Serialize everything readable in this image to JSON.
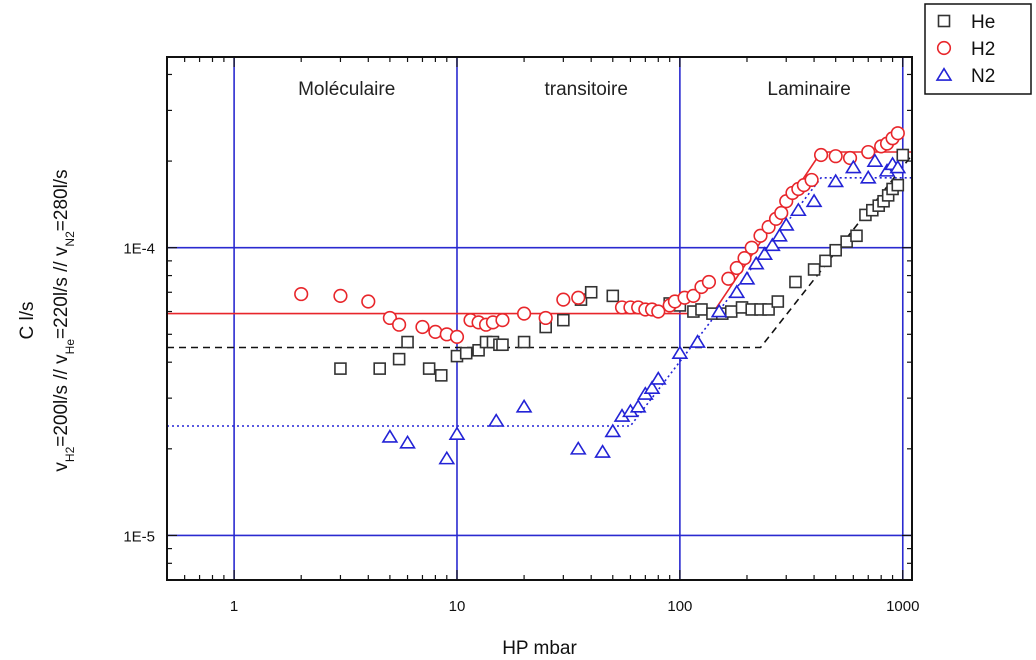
{
  "chart_data": {
    "type": "scatter",
    "xscale": "log",
    "yscale": "log",
    "xlim": [
      0.5,
      1100
    ],
    "ylim": [
      7e-06,
      0.00046
    ],
    "xlabel": "HP mbar",
    "ylabel_line1": "C l/s",
    "ylabel_line2": "v_H2=200l/s // v_He=220l/s // v_N2=280l/s",
    "ylabel_parts": [
      {
        "t": "v"
      },
      {
        "t": "H2",
        "sub": true
      },
      {
        "t": "=200l/s // v"
      },
      {
        "t": "He",
        "sub": true
      },
      {
        "t": "=220l/s // v"
      },
      {
        "t": "N2",
        "sub": true
      },
      {
        "t": "=280l/s"
      }
    ],
    "x_ticks": [
      {
        "v": 1,
        "label": "1"
      },
      {
        "v": 10,
        "label": "10"
      },
      {
        "v": 100,
        "label": "100"
      },
      {
        "v": 1000,
        "label": "1000"
      }
    ],
    "y_ticks": [
      {
        "v": 1e-05,
        "label": "1E-5"
      },
      {
        "v": 0.0001,
        "label": "1E-4"
      }
    ],
    "grid": true,
    "regions": [
      {
        "label": "Moléculaire",
        "x": 3.2
      },
      {
        "label": "transitoire",
        "x": 38
      },
      {
        "label": "Laminaire",
        "x": 380
      }
    ],
    "legend_position": "top-right-outside",
    "series": [
      {
        "name": "He",
        "marker": "square",
        "color": "#333333",
        "points": [
          [
            3,
            3.8e-05
          ],
          [
            4.5,
            3.8e-05
          ],
          [
            5.5,
            4.1e-05
          ],
          [
            6,
            4.7e-05
          ],
          [
            7.5,
            3.8e-05
          ],
          [
            8.5,
            3.6e-05
          ],
          [
            10,
            4.2e-05
          ],
          [
            11,
            4.3e-05
          ],
          [
            12.5,
            4.4e-05
          ],
          [
            13.5,
            4.7e-05
          ],
          [
            14.5,
            4.7e-05
          ],
          [
            15.5,
            4.6e-05
          ],
          [
            16,
            4.6e-05
          ],
          [
            20,
            4.7e-05
          ],
          [
            25,
            5.3e-05
          ],
          [
            30,
            5.6e-05
          ],
          [
            36,
            6.6e-05
          ],
          [
            40,
            7e-05
          ],
          [
            50,
            6.8e-05
          ],
          [
            90,
            6.4e-05
          ],
          [
            100,
            6.3e-05
          ],
          [
            115,
            6e-05
          ],
          [
            125,
            6.1e-05
          ],
          [
            140,
            5.9e-05
          ],
          [
            155,
            5.9e-05
          ],
          [
            170,
            6e-05
          ],
          [
            190,
            6.2e-05
          ],
          [
            210,
            6.1e-05
          ],
          [
            230,
            6.1e-05
          ],
          [
            250,
            6.1e-05
          ],
          [
            275,
            6.5e-05
          ],
          [
            330,
            7.6e-05
          ],
          [
            400,
            8.4e-05
          ],
          [
            450,
            9e-05
          ],
          [
            500,
            9.8e-05
          ],
          [
            560,
            0.000105
          ],
          [
            620,
            0.00011
          ],
          [
            680,
            0.00013
          ],
          [
            730,
            0.000135
          ],
          [
            780,
            0.00014
          ],
          [
            820,
            0.000145
          ],
          [
            860,
            0.000152
          ],
          [
            900,
            0.00016
          ],
          [
            950,
            0.000165
          ],
          [
            1000,
            0.00021
          ]
        ]
      },
      {
        "name": "H2",
        "marker": "circle",
        "color": "#e8262b",
        "points": [
          [
            2,
            6.9e-05
          ],
          [
            3,
            6.8e-05
          ],
          [
            4,
            6.5e-05
          ],
          [
            5,
            5.7e-05
          ],
          [
            5.5,
            5.4e-05
          ],
          [
            7,
            5.3e-05
          ],
          [
            8,
            5.1e-05
          ],
          [
            9,
            5e-05
          ],
          [
            10,
            4.9e-05
          ],
          [
            11.5,
            5.6e-05
          ],
          [
            12.5,
            5.5e-05
          ],
          [
            13.5,
            5.4e-05
          ],
          [
            14.5,
            5.5e-05
          ],
          [
            16,
            5.6e-05
          ],
          [
            20,
            5.9e-05
          ],
          [
            25,
            5.7e-05
          ],
          [
            30,
            6.6e-05
          ],
          [
            35,
            6.7e-05
          ],
          [
            55,
            6.2e-05
          ],
          [
            60,
            6.2e-05
          ],
          [
            65,
            6.2e-05
          ],
          [
            70,
            6.1e-05
          ],
          [
            75,
            6.1e-05
          ],
          [
            80,
            6e-05
          ],
          [
            90,
            6.3e-05
          ],
          [
            95,
            6.5e-05
          ],
          [
            105,
            6.7e-05
          ],
          [
            115,
            6.8e-05
          ],
          [
            125,
            7.3e-05
          ],
          [
            135,
            7.6e-05
          ],
          [
            165,
            7.8e-05
          ],
          [
            180,
            8.5e-05
          ],
          [
            195,
            9.2e-05
          ],
          [
            210,
            0.0001
          ],
          [
            230,
            0.00011
          ],
          [
            250,
            0.000118
          ],
          [
            270,
            0.000126
          ],
          [
            285,
            0.000132
          ],
          [
            300,
            0.000145
          ],
          [
            320,
            0.000155
          ],
          [
            340,
            0.00016
          ],
          [
            360,
            0.000165
          ],
          [
            390,
            0.000172
          ],
          [
            430,
            0.00021
          ],
          [
            500,
            0.000208
          ],
          [
            580,
            0.000205
          ],
          [
            700,
            0.000215
          ],
          [
            800,
            0.000225
          ],
          [
            850,
            0.00023
          ],
          [
            900,
            0.00024
          ],
          [
            950,
            0.00025
          ]
        ]
      },
      {
        "name": "N2",
        "marker": "triangle",
        "color": "#2323d6",
        "points": [
          [
            5,
            2.2e-05
          ],
          [
            6,
            2.1e-05
          ],
          [
            9,
            1.85e-05
          ],
          [
            10,
            2.25e-05
          ],
          [
            15,
            2.5e-05
          ],
          [
            20,
            2.8e-05
          ],
          [
            35,
            2e-05
          ],
          [
            45,
            1.95e-05
          ],
          [
            50,
            2.3e-05
          ],
          [
            55,
            2.6e-05
          ],
          [
            60,
            2.7e-05
          ],
          [
            65,
            2.8e-05
          ],
          [
            70,
            3.1e-05
          ],
          [
            75,
            3.25e-05
          ],
          [
            80,
            3.5e-05
          ],
          [
            100,
            4.3e-05
          ],
          [
            120,
            4.7e-05
          ],
          [
            150,
            6e-05
          ],
          [
            180,
            7e-05
          ],
          [
            200,
            7.8e-05
          ],
          [
            220,
            8.8e-05
          ],
          [
            240,
            9.5e-05
          ],
          [
            260,
            0.000102
          ],
          [
            280,
            0.00011
          ],
          [
            300,
            0.00012
          ],
          [
            340,
            0.000135
          ],
          [
            400,
            0.000145
          ],
          [
            500,
            0.00017
          ],
          [
            600,
            0.00019
          ],
          [
            700,
            0.000175
          ],
          [
            750,
            0.0002
          ],
          [
            850,
            0.000185
          ],
          [
            900,
            0.000195
          ],
          [
            950,
            0.00019
          ]
        ]
      }
    ],
    "fit_lines": [
      {
        "series": "He",
        "style": "dashed",
        "color": "#111111",
        "points": [
          [
            0.5,
            4.5e-05
          ],
          [
            230,
            4.5e-05
          ],
          [
            1100,
            0.00021
          ]
        ]
      },
      {
        "series": "H2",
        "style": "solid",
        "color": "#e8262b",
        "points": [
          [
            0.5,
            5.9e-05
          ],
          [
            140,
            5.9e-05
          ],
          [
            430,
            0.000215
          ],
          [
            1100,
            0.000215
          ]
        ]
      },
      {
        "series": "N2",
        "style": "dotted",
        "color": "#2323d6",
        "points": [
          [
            0.5,
            2.4e-05
          ],
          [
            60,
            2.4e-05
          ],
          [
            430,
            0.000175
          ],
          [
            1100,
            0.000175
          ]
        ]
      }
    ]
  }
}
